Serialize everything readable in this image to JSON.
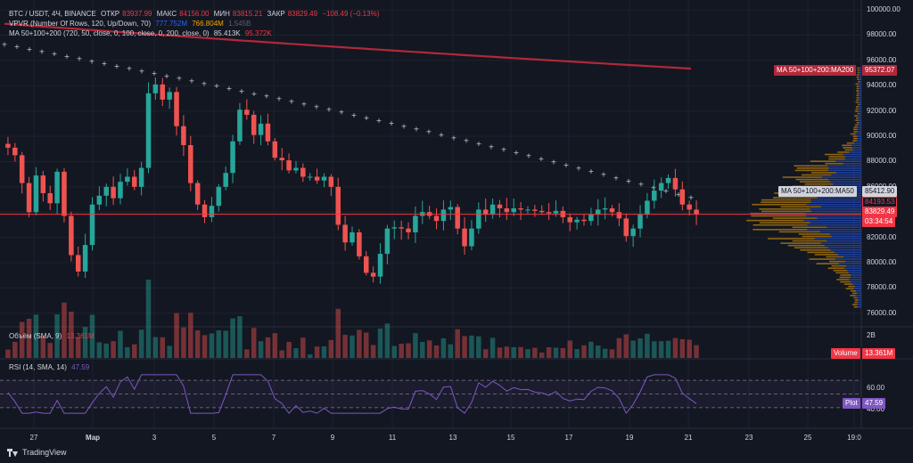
{
  "colors": {
    "background": "#131722",
    "grid": "#1e222d",
    "up": "#26a69a",
    "down": "#ef5350",
    "ma200": "#b2283a",
    "ma50": "#d1d4dc",
    "price_line": "#f23645",
    "vp_up": "#2962ff",
    "vp_down": "#f7a600",
    "rsi": "#7e57c2"
  },
  "legend": {
    "symbol": "BTC / USDT, 4Ч, BINANCE",
    "open_label": "ОТКР",
    "open_value": "83937.99",
    "high_label": "МАКС",
    "high_value": "84156.00",
    "low_label": "МИН",
    "low_value": "83815.21",
    "close_label": "ЗАКР",
    "close_value": "83829.49",
    "change": "−108.49 (−0.13%)",
    "vpvr_title": "VPVR (Number Of Rows, 120, Up/Down, 70)",
    "vpvr_up": "777.752M",
    "vpvr_down": "766.804M",
    "vpvr_total": "1.545B",
    "ma_title": "MA 50+100+200 (720, 50, close, 0, 100, close, 0, 200, close, 0)",
    "ma_val1": "85.413K",
    "ma_val2": "95.372K",
    "volume_title": "Объём (SMA, 9)",
    "volume_value": "13.361M",
    "rsi_title": "RSI (14, SMA, 14)",
    "rsi_value": "47.59"
  },
  "price_axis": [
    "100000.00",
    "98000.00",
    "96000.00",
    "94000.00",
    "92000.00",
    "90000.00",
    "88000.00",
    "86000.00",
    "84000.00",
    "82000.00",
    "80000.00",
    "78000.00",
    "76000.00"
  ],
  "volume_axis": [
    "2B"
  ],
  "rsi_axis": [
    "60.00",
    "40.00"
  ],
  "time_axis": [
    "27",
    "Мар",
    "3",
    "5",
    "7",
    "9",
    "11",
    "13",
    "15",
    "17",
    "19",
    "21",
    "23",
    "25",
    "19:0"
  ],
  "tags": {
    "ma200": "MA 50+100+200:MA200",
    "ma200_value": "95372.07",
    "ma50": "MA 50+100+200:MA50",
    "ma50_value": "85412.90",
    "last_high": "84193.53",
    "last_close": "83829.49",
    "countdown": "03:34:54",
    "volume_label": "Volume",
    "volume_value": "13.361M",
    "rsi_label": "Plot",
    "rsi_value": "47.59"
  },
  "footer": {
    "brand": "TradingView"
  },
  "chart_data": {
    "type": "candlestick",
    "symbol": "BTC / USDT",
    "price_range": [
      75000,
      100500
    ],
    "closes": [
      89100,
      88500,
      86300,
      84000,
      86900,
      85500,
      84700,
      87200,
      83700,
      80600,
      79300,
      81400,
      84600,
      85300,
      86000,
      85100,
      86400,
      86800,
      86000,
      87500,
      93400,
      94100,
      92900,
      93500,
      90800,
      89300,
      86300,
      84600,
      83600,
      84500,
      86000,
      87100,
      89600,
      92100,
      91700,
      90100,
      91000,
      89600,
      88300,
      88100,
      87300,
      87500,
      86800,
      86800,
      86500,
      86800,
      86000,
      83000,
      81600,
      82400,
      80500,
      79200,
      78900,
      80700,
      82700,
      82800,
      82700,
      82400,
      83700,
      84000,
      83700,
      83300,
      84200,
      84400,
      82700,
      81300,
      82700,
      84200,
      83800,
      84600,
      84300,
      84000,
      84300,
      84200,
      84200,
      84100,
      84000,
      83900,
      84100,
      83600,
      83200,
      83400,
      83300,
      83800,
      84200,
      84300,
      84000,
      83500,
      82100,
      82700,
      83800,
      84900,
      85700,
      86300,
      86700,
      85800,
      84600,
      84200,
      83829.49
    ],
    "volume_sma": 13361000,
    "rsi_last": 47.59,
    "ma50_last": 85412.9,
    "ma200_last": 95372.07,
    "vpvr_up_total": 777752000,
    "vpvr_down_total": 766804000
  }
}
